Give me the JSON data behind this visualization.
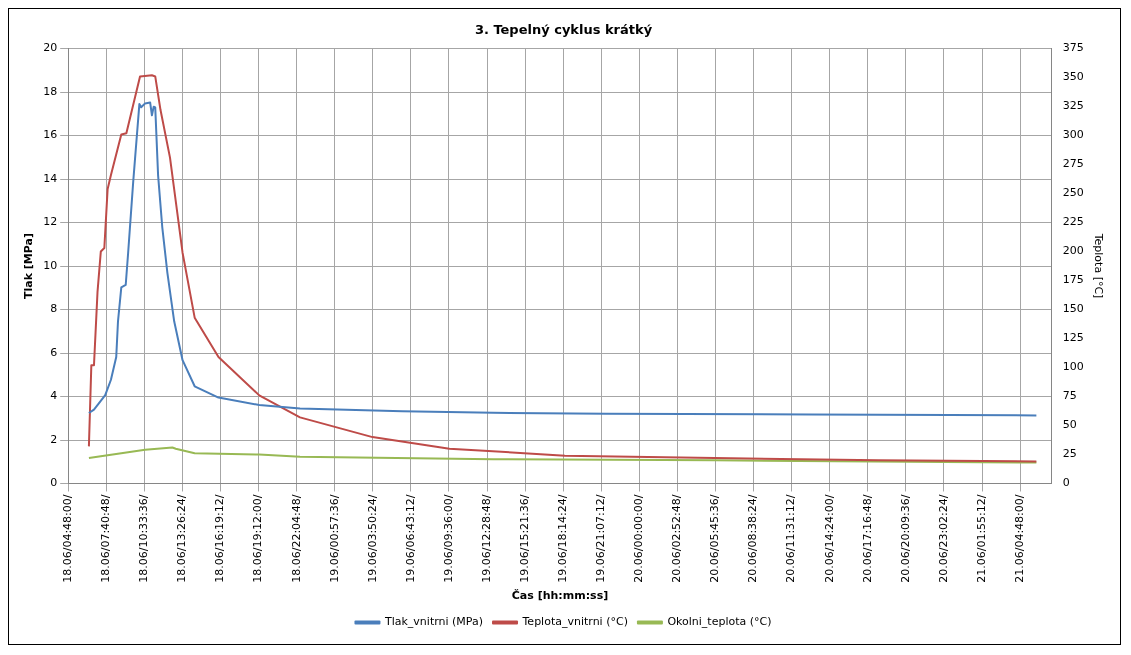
{
  "chart_data": {
    "type": "line",
    "title": "3. Tepelný cyklus krátký",
    "xlabel": "Čas [hh:mm:ss]",
    "ylabel": "Tlak [MPa]",
    "y2label": "Teplota [°C]",
    "xlim": [
      "--06-18T04:48",
      "--06-21T07:12"
    ],
    "xticks": [
      {
        "value": "--06-18T04:48",
        "label": "18.06/04:48:00/"
      },
      {
        "value": "--06-18T07:40:48",
        "label": "18.06/07:40:48/"
      },
      {
        "value": "--06-18T10:33:36",
        "label": "18.06/10:33:36/"
      },
      {
        "value": "--06-18T13:26:24",
        "label": "18.06/13:26:24/"
      },
      {
        "value": "--06-18T16:19:12",
        "label": "18.06/16:19:12/"
      },
      {
        "value": "--06-18T19:12",
        "label": "18.06/19:12:00/"
      },
      {
        "value": "--06-18T22:04:48",
        "label": "18.06/22:04:48/"
      },
      {
        "value": "--06-19T00:57:36",
        "label": "19.06/00:57:36/"
      },
      {
        "value": "--06-19T03:50:24",
        "label": "19.06/03:50:24/"
      },
      {
        "value": "--06-19T06:43:12",
        "label": "19.06/06:43:12/"
      },
      {
        "value": "--06-19T09:36",
        "label": "19.06/09:36:00/"
      },
      {
        "value": "--06-19T12:28:48",
        "label": "19.06/12:28:48/"
      },
      {
        "value": "--06-19T15:21:36",
        "label": "19.06/15:21:36/"
      },
      {
        "value": "--06-19T18:14:24",
        "label": "19.06/18:14:24/"
      },
      {
        "value": "--06-19T21:07:12",
        "label": "19.06/21:07:12/"
      },
      {
        "value": "--06-20T00:00",
        "label": "20.06/00:00:00/"
      },
      {
        "value": "--06-20T02:52:48",
        "label": "20.06/02:52:48/"
      },
      {
        "value": "--06-20T05:45:36",
        "label": "20.06/05:45:36/"
      },
      {
        "value": "--06-20T08:38:24",
        "label": "20.06/08:38:24/"
      },
      {
        "value": "--06-20T11:31:12",
        "label": "20.06/11:31:12/"
      },
      {
        "value": "--06-20T14:24",
        "label": "20.06/14:24:00/"
      },
      {
        "value": "--06-20T17:16:48",
        "label": "20.06/17:16:48/"
      },
      {
        "value": "--06-20T20:09:36",
        "label": "20.06/20:09:36/"
      },
      {
        "value": "--06-20T23:02:24",
        "label": "20.06/23:02:24/"
      },
      {
        "value": "--06-21T01:55:12",
        "label": "21.06/01:55:12/"
      },
      {
        "value": "--06-21T04:48",
        "label": "21.06/04:48:00/"
      }
    ],
    "ylim": [
      0,
      20
    ],
    "yticks": [
      0,
      2,
      4,
      6,
      8,
      10,
      12,
      14,
      16,
      18,
      20
    ],
    "y2lim": [
      0,
      375
    ],
    "y2ticks": [
      0,
      25,
      50,
      75,
      100,
      125,
      150,
      175,
      200,
      225,
      250,
      275,
      300,
      325,
      350,
      375
    ],
    "grid": true,
    "legend": "bottom",
    "marker": "none",
    "series": [
      {
        "name": "Tlak_vnitrni (MPa)",
        "color": "#4a7ebb",
        "x": [
          "--06-18T06:22",
          "--06-18T06:45",
          "--06-18T07:36",
          "--06-18T08:02",
          "--06-18T08:26",
          "--06-18T08:34",
          "--06-18T08:49",
          "--06-18T09:09",
          "--06-18T09:20",
          "--06-18T09:43",
          "--06-18T10:11",
          "--06-18T10:19",
          "--06-18T10:37",
          "--06-18T11:00",
          "--06-18T11:08",
          "--06-18T11:16",
          "--06-18T11:23",
          "--06-18T11:36",
          "--06-18T11:55",
          "--06-18T12:18",
          "--06-18T12:49",
          "--06-18T13:27",
          "--06-18T14:22",
          "--06-18T16:10",
          "--06-18T19:15",
          "--06-18T22:20",
          "--06-19T06:04",
          "--06-19T12:56",
          "--06-19T21:31",
          "--06-20T13:00",
          "--06-21T06:02"
        ],
        "values": [
          3.24,
          3.4,
          4.06,
          4.77,
          5.82,
          7.46,
          9.02,
          9.13,
          10.6,
          13.87,
          17.45,
          17.3,
          17.48,
          17.52,
          16.93,
          17.33,
          17.3,
          14.17,
          11.78,
          9.7,
          7.46,
          5.67,
          4.47,
          3.95,
          3.61,
          3.45,
          3.32,
          3.25,
          3.21,
          3.17,
          3.13
        ]
      },
      {
        "name": "Teplota_vnitrni (°C)",
        "color": "#be4b48",
        "axis": "y2",
        "x": [
          "--06-18T06:22",
          "--06-18T06:33",
          "--06-18T06:45",
          "--06-18T07:01",
          "--06-18T07:16",
          "--06-18T07:32",
          "--06-18T07:47",
          "--06-18T08:02",
          "--06-18T08:49",
          "--06-18T09:12",
          "--06-18T10:14",
          "--06-18T11:08",
          "--06-18T11:23",
          "--06-18T11:47",
          "--06-18T12:30",
          "--06-18T13:27",
          "--06-18T14:22",
          "--06-18T16:10",
          "--06-18T19:15",
          "--06-18T22:20",
          "--06-19T03:49",
          "--06-19T09:38",
          "--06-19T18:23",
          "--06-20T05:41",
          "--06-20T18:04",
          "--06-21T06:02"
        ],
        "values": [
          32,
          102,
          102,
          165,
          200,
          203,
          254,
          266,
          301,
          302,
          351,
          352,
          351,
          322,
          281,
          199,
          143,
          109,
          76,
          57,
          40,
          30,
          24,
          22,
          20,
          19
        ]
      },
      {
        "name": "Okolni_teplota (°C)",
        "color": "#98b954",
        "axis": "y2",
        "x": [
          "--06-18T06:22",
          "--06-18T10:37",
          "--06-18T12:41",
          "--06-18T12:56",
          "--06-18T14:22",
          "--06-18T19:15",
          "--06-18T22:20",
          "--06-19T12:56",
          "--06-20T05:41",
          "--06-21T06:02"
        ],
        "values": [
          22,
          29,
          31,
          30,
          26,
          25,
          23,
          21,
          20,
          18
        ]
      }
    ]
  }
}
